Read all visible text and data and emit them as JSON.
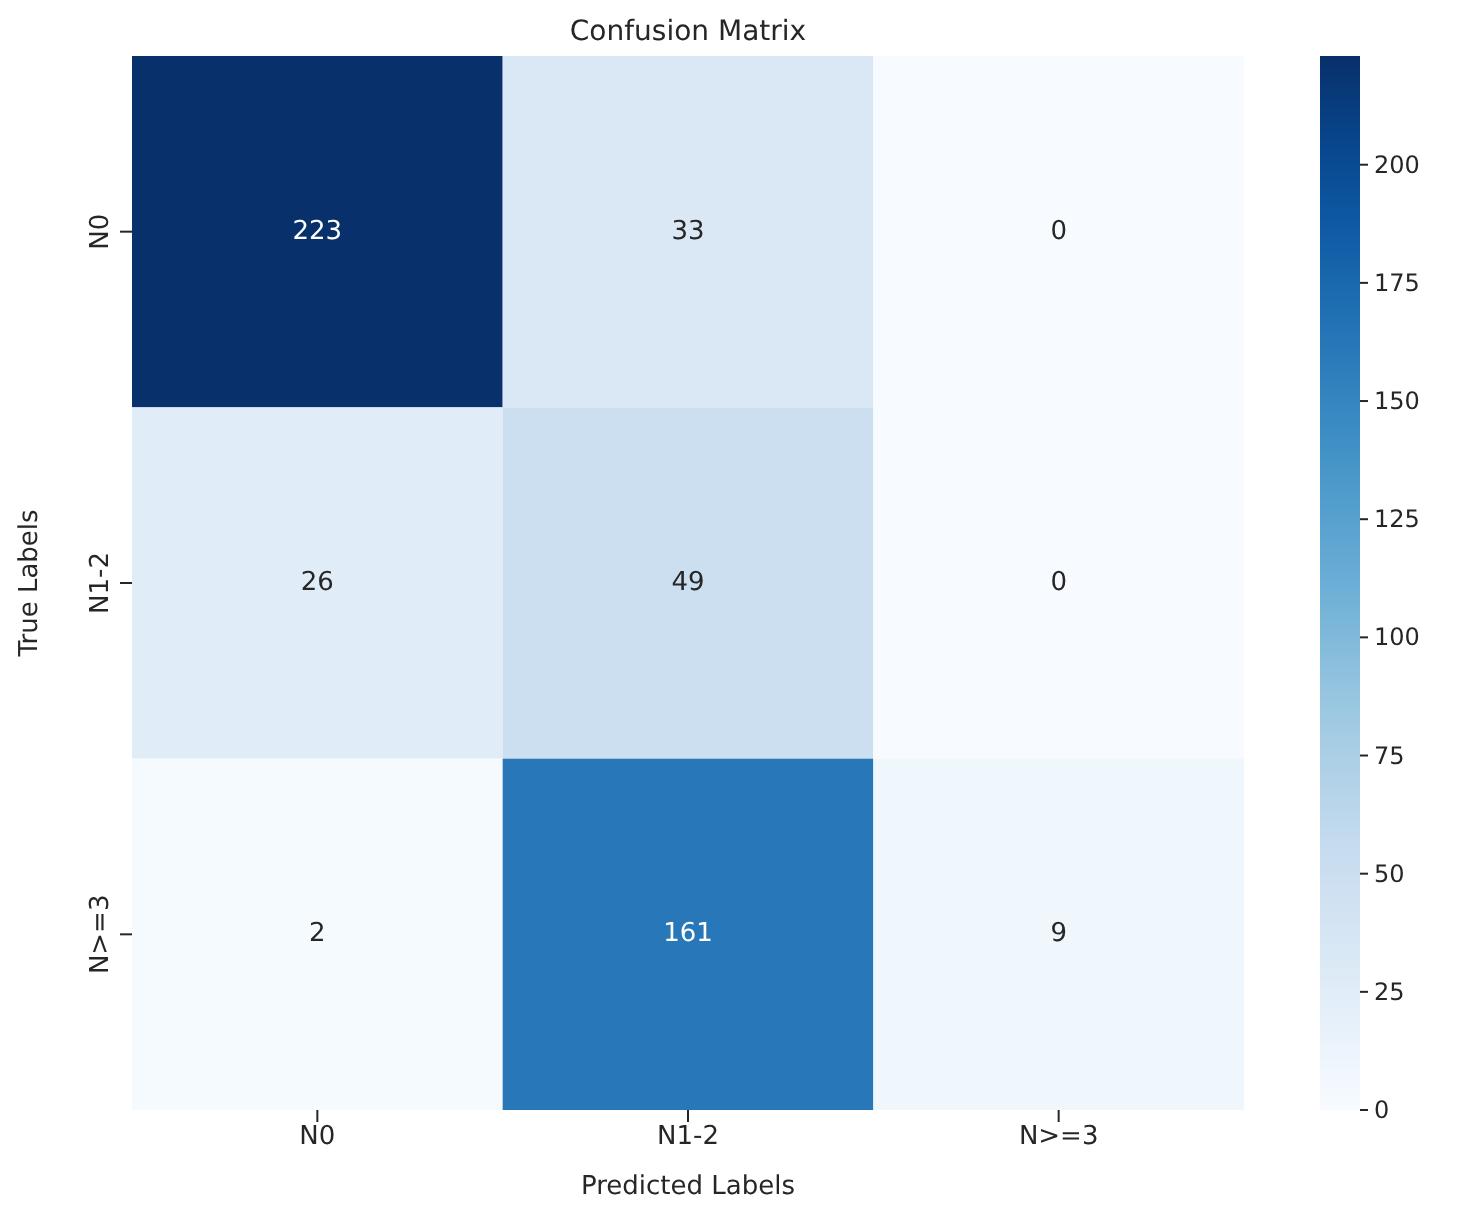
{
  "chart_data": {
    "type": "heatmap",
    "title": "Confusion Matrix",
    "xlabel": "Predicted Labels",
    "ylabel": "True Labels",
    "categories": [
      "N0",
      "N1-2",
      "N>=3"
    ],
    "y_categories": [
      "N0",
      "N1-2",
      "N>=3"
    ],
    "cells": [
      [
        223,
        33,
        0
      ],
      [
        26,
        49,
        0
      ],
      [
        2,
        161,
        9
      ]
    ],
    "data_labels": true,
    "clim": [
      0,
      223
    ],
    "cticks": [
      0,
      25,
      50,
      75,
      100,
      125,
      150,
      175,
      200
    ]
  }
}
